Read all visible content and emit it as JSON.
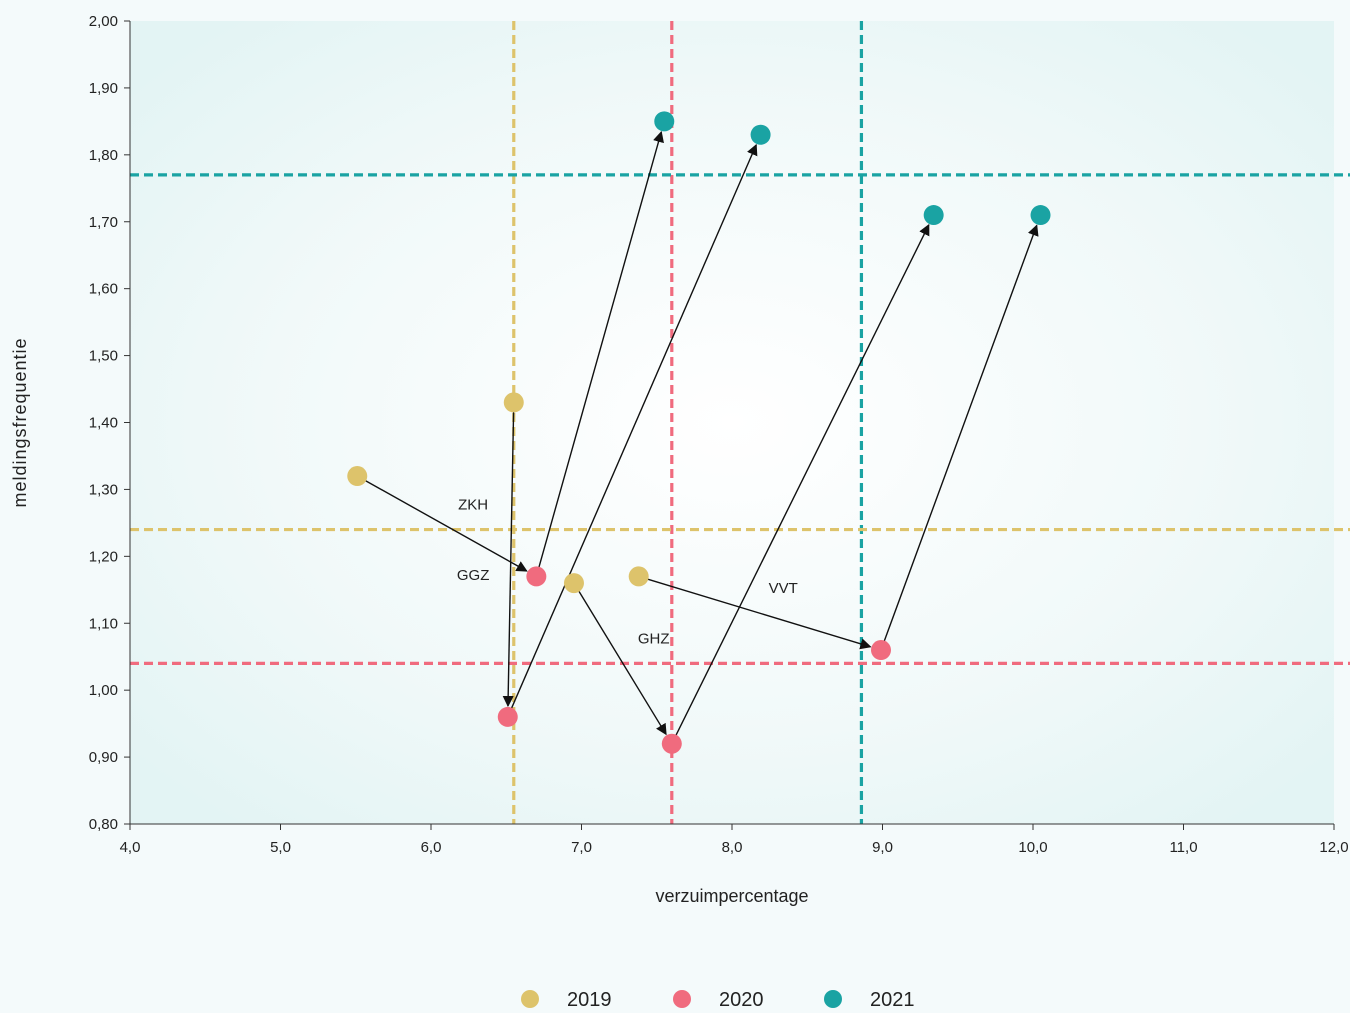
{
  "chart_data": {
    "type": "scatter",
    "title": "",
    "xlabel": "verzuimpercentage",
    "ylabel": "meldingsfrequentie",
    "xlim": [
      4.0,
      12.0
    ],
    "ylim": [
      0.8,
      2.0
    ],
    "xticks": [
      "4,0",
      "5,0",
      "6,0",
      "7,0",
      "8,0",
      "9,0",
      "10,0",
      "11,0",
      "12,0"
    ],
    "yticks": [
      "0,80",
      "0,90",
      "1,00",
      "1,10",
      "1,20",
      "1,30",
      "1,40",
      "1,50",
      "1,60",
      "1,70",
      "1,80",
      "1,90",
      "2,00"
    ],
    "legend_position": "bottom-center",
    "series": [
      {
        "name": "2019",
        "color": "#ddc36b",
        "points": [
          {
            "sector": "ZKH",
            "x": 5.51,
            "y": 1.32
          },
          {
            "sector": "GGZ",
            "x": 6.55,
            "y": 1.43
          },
          {
            "sector": "GHZ",
            "x": 6.95,
            "y": 1.16
          },
          {
            "sector": "VVT",
            "x": 7.38,
            "y": 1.17
          }
        ]
      },
      {
        "name": "2020",
        "color": "#f06b7e",
        "points": [
          {
            "sector": "ZKH",
            "x": 6.7,
            "y": 1.17
          },
          {
            "sector": "GGZ",
            "x": 6.51,
            "y": 0.96
          },
          {
            "sector": "GHZ",
            "x": 7.6,
            "y": 0.92
          },
          {
            "sector": "VVT",
            "x": 8.99,
            "y": 1.06
          }
        ]
      },
      {
        "name": "2021",
        "color": "#1aa3a3",
        "points": [
          {
            "sector": "ZKH",
            "x": 7.55,
            "y": 1.85
          },
          {
            "sector": "GGZ",
            "x": 8.19,
            "y": 1.83
          },
          {
            "sector": "GHZ",
            "x": 9.34,
            "y": 1.71
          },
          {
            "sector": "VVT",
            "x": 10.05,
            "y": 1.71
          }
        ]
      }
    ],
    "reference_lines": {
      "vertical": [
        {
          "series": "2019",
          "x": 6.55
        },
        {
          "series": "2020",
          "x": 7.6
        },
        {
          "series": "2021",
          "x": 8.86
        }
      ],
      "horizontal": [
        {
          "series": "2019",
          "y": 1.24
        },
        {
          "series": "2020",
          "y": 1.04
        },
        {
          "series": "2021",
          "y": 1.77
        }
      ]
    },
    "annotations": [
      {
        "text": "ZKH",
        "x": 6.28,
        "y": 1.27
      },
      {
        "text": "GGZ",
        "x": 6.28,
        "y": 1.165
      },
      {
        "text": "VVT",
        "x": 8.34,
        "y": 1.145
      },
      {
        "text": "GHZ",
        "x": 7.48,
        "y": 1.07
      }
    ]
  }
}
